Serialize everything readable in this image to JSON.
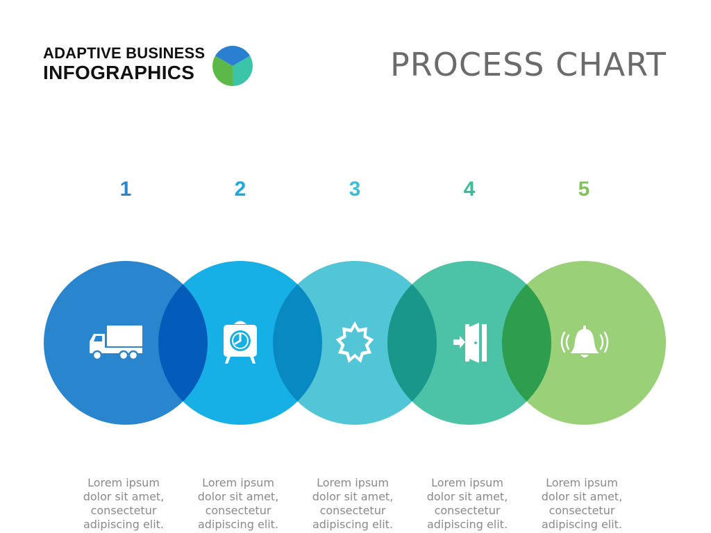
{
  "header": {
    "brand_line1": "ADAPTIVE BUSINESS",
    "brand_line2": "INFOGRAPHICS",
    "title": "PROCESS CHART"
  },
  "logo_colors": [
    "#2a7fd0",
    "#3cc4a8",
    "#5db84a"
  ],
  "steps": [
    {
      "number": "1",
      "icon": "truck-icon",
      "color": "#2a85cf",
      "number_color": "#2a85cf",
      "text": [
        "Lorem ipsum",
        "dolor sit amet,",
        "consectetur",
        "adipiscing elit."
      ]
    },
    {
      "number": "2",
      "icon": "alarm-clock-icon",
      "color": "#17b0e6",
      "number_color": "#1fa8de",
      "text": [
        "Lorem ipsum",
        "dolor sit amet,",
        "consectetur",
        "adipiscing elit."
      ]
    },
    {
      "number": "3",
      "icon": "starburst-icon",
      "color": "#52c6d6",
      "number_color": "#3cbfd2",
      "text": [
        "Lorem ipsum",
        "dolor sit amet,",
        "consectetur",
        "adipiscing elit."
      ]
    },
    {
      "number": "4",
      "icon": "exit-door-icon",
      "color": "#4cc2a6",
      "number_color": "#3bbd9c",
      "text": [
        "Lorem ipsum",
        "dolor sit amet,",
        "consectetur",
        "adipiscing elit."
      ]
    },
    {
      "number": "5",
      "icon": "bell-icon",
      "color": "#99d078",
      "number_color": "#7fc35a",
      "text": [
        "Lorem ipsum",
        "dolor sit amet,",
        "consectetur",
        "adipiscing elit."
      ]
    }
  ]
}
